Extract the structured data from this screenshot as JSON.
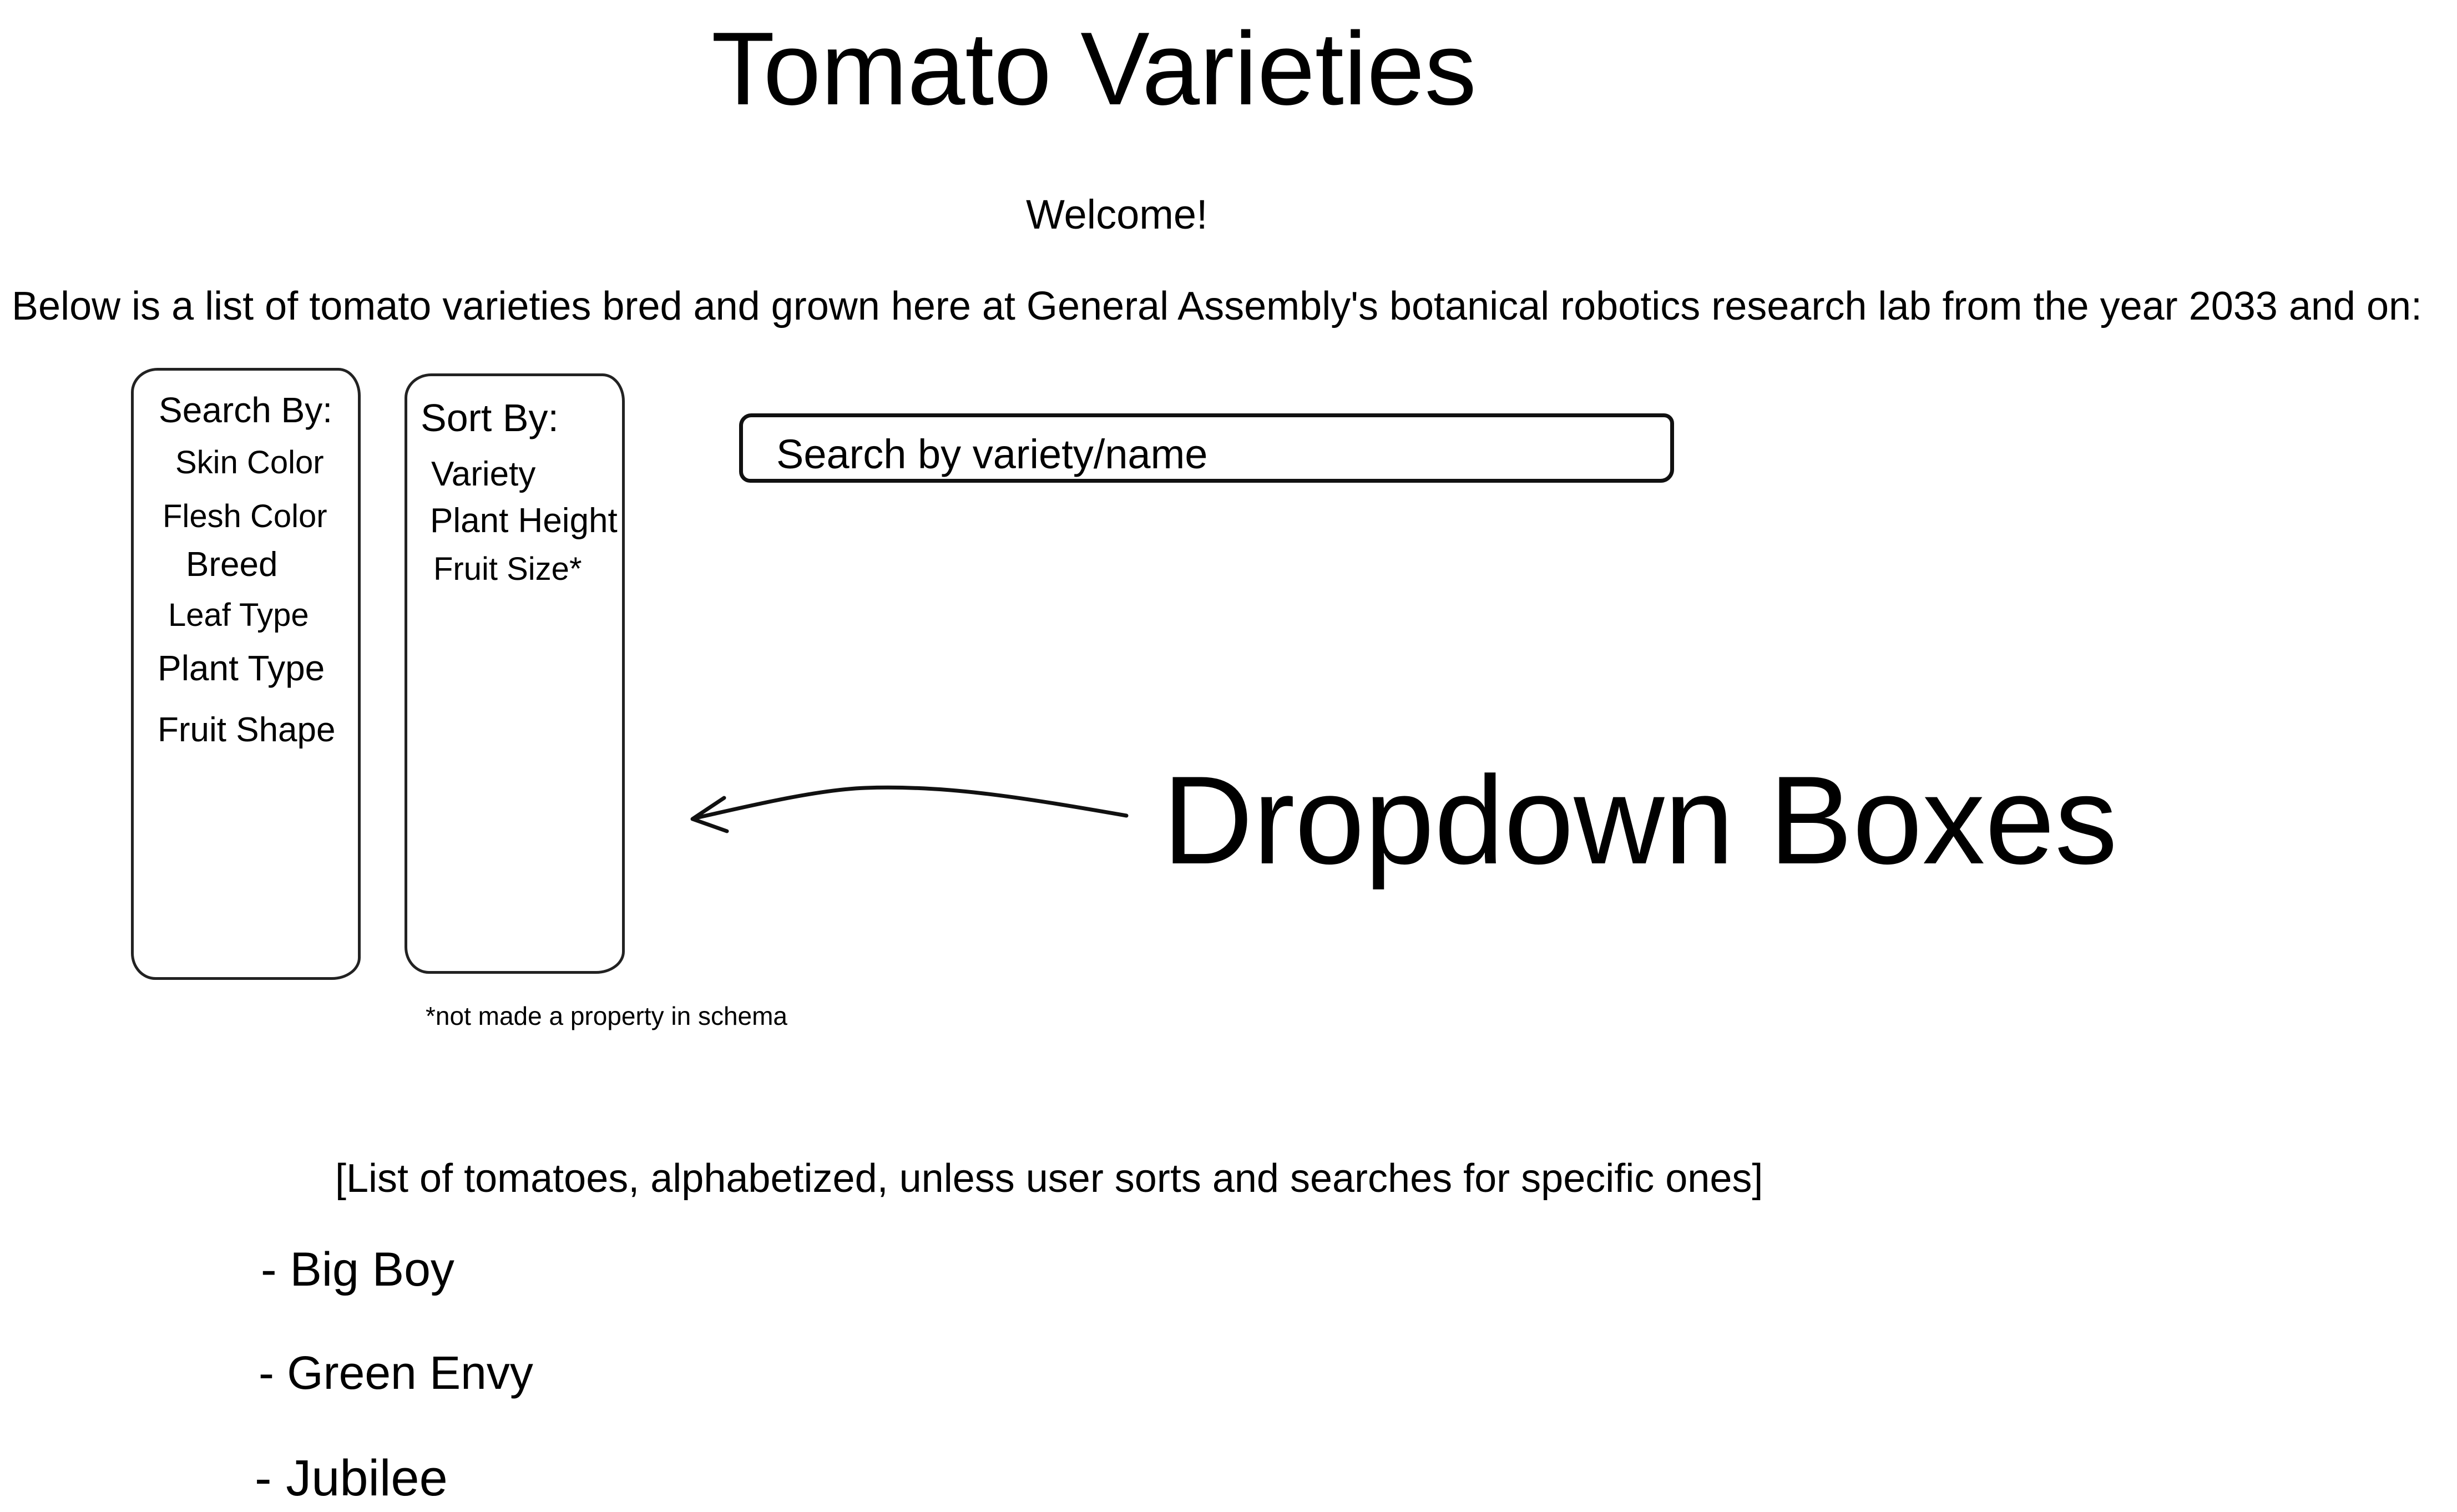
{
  "page": {
    "title": "Tomato Varieties",
    "welcome": "Welcome!",
    "intro": "Below is a list of tomato varieties bred and grown here at General Assembly's botanical robotics research lab from the year 2033 and on:"
  },
  "search_by": {
    "label": "Search By:",
    "options": [
      "Skin Color",
      "Flesh Color",
      "Breed",
      "Leaf Type",
      "Plant Type",
      "Fruit Shape"
    ]
  },
  "sort_by": {
    "label": "Sort By:",
    "options": [
      "Variety",
      "Plant Height",
      "Fruit Size*"
    ]
  },
  "search": {
    "placeholder": "Search by variety/name"
  },
  "annotation": {
    "dropdown_label": "Dropdown Boxes",
    "footnote": "*not made a property in schema"
  },
  "list": {
    "caption": "[List of tomatoes, alphabetized, unless user sorts and searches for specific ones]",
    "items": [
      "- Big Boy",
      "- Green Envy",
      "- Jubilee"
    ]
  }
}
